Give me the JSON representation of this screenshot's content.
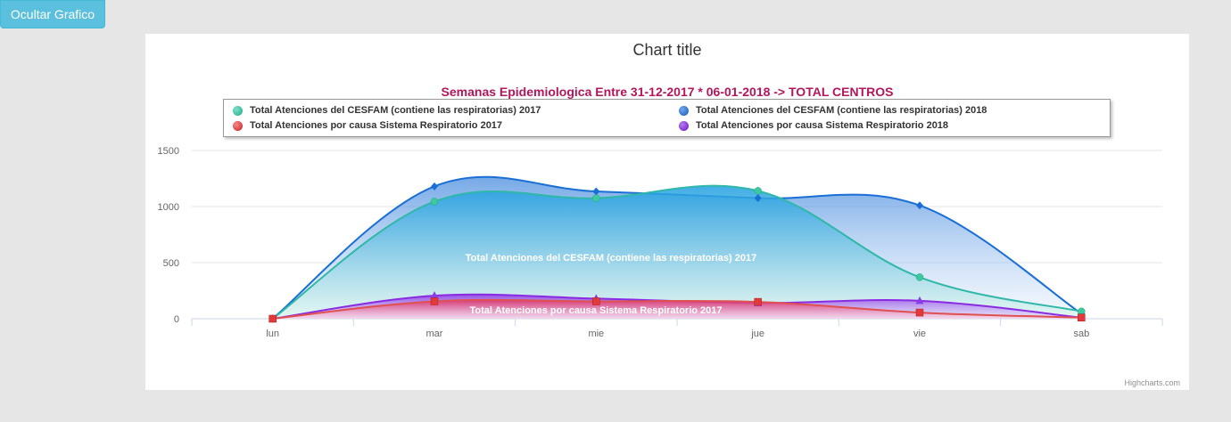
{
  "toolbar": {
    "toggle_label": "Ocultar Grafico"
  },
  "chart_data": {
    "type": "area",
    "title": "Chart title",
    "subtitle": "Semanas Epidemiologica Entre 31-12-2017 * 06-01-2018 -> TOTAL CENTROS",
    "categories": [
      "lun",
      "mar",
      "mie",
      "jue",
      "vie",
      "sab"
    ],
    "ylim": [
      0,
      1500
    ],
    "yticks": [
      0,
      500,
      1000,
      1500
    ],
    "grid": true,
    "legend_position": "top",
    "series": [
      {
        "name": "Total Atenciones del CESFAM (contiene las respiratorias) 2017",
        "values": [
          0,
          1045,
          1075,
          1140,
          370,
          65
        ],
        "color": "#3cc9a0",
        "data_label": "Total Atenciones del CESFAM (contiene las respiratorias) 2017"
      },
      {
        "name": "Total Atenciones del CESFAM (contiene las respiratorias) 2018",
        "values": [
          0,
          1180,
          1135,
          1075,
          1010,
          45
        ],
        "color": "#1f6fcf",
        "data_label": ""
      },
      {
        "name": "Total Atenciones por causa Sistema Respiratorio 2017",
        "values": [
          0,
          155,
          155,
          150,
          55,
          10
        ],
        "color": "#e03131",
        "data_label": "Total Atenciones por causa Sistema Respiratorio 2017"
      },
      {
        "name": "Total Atenciones por causa Sistema Respiratorio 2018",
        "values": [
          0,
          205,
          180,
          140,
          160,
          10
        ],
        "color": "#8a2be2",
        "data_label": ""
      }
    ]
  },
  "credits": "Highcharts.com"
}
